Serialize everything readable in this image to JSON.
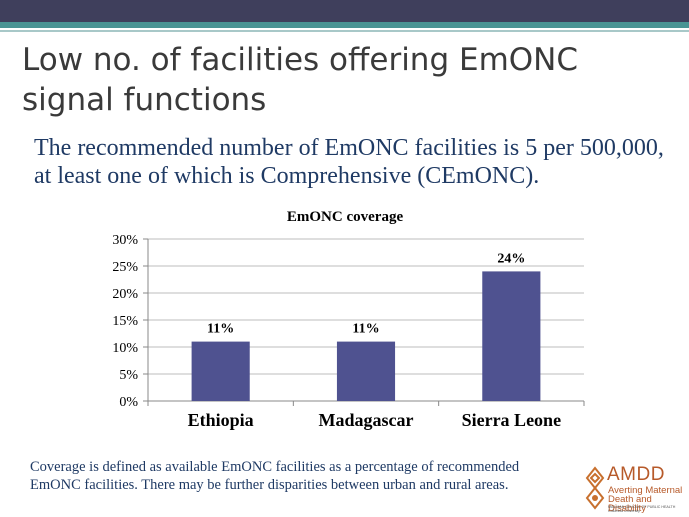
{
  "slide": {
    "title": "Low no. of facilities offering EmONC signal functions",
    "subtitle": "The recommended number of EmONC facilities is 5 per 500,000, at least one of which is Comprehensive (CEmONC).",
    "footnote": "Coverage is defined as available EmONC facilities as a percentage of recommended EmONC facilities. There may be further disparities between urban and rural areas."
  },
  "logo": {
    "name": "AMDD",
    "subtitle": "Averting Maternal Death and Disability",
    "school": "MAILMAN SCHOOL OF PUBLIC HEALTH Columbia University",
    "color": "#b75a2a"
  },
  "colors": {
    "bar": "#4f5290",
    "band_dark": "#3f3f5c",
    "band_teal": "#4a9494",
    "text_blue": "#1f3a64"
  },
  "chart_data": {
    "type": "bar",
    "title": "EmONC coverage",
    "categories": [
      "Ethiopia",
      "Madagascar",
      "Sierra Leone"
    ],
    "values": [
      11,
      11,
      24
    ],
    "data_labels": [
      "11%",
      "11%",
      "24%"
    ],
    "ylim": [
      0,
      30
    ],
    "yticks": [
      "0%",
      "5%",
      "10%",
      "15%",
      "20%",
      "25%",
      "30%"
    ],
    "ytick_values": [
      0,
      5,
      10,
      15,
      20,
      25,
      30
    ],
    "grid": true,
    "legend": "none",
    "xlabel": "",
    "ylabel": ""
  }
}
